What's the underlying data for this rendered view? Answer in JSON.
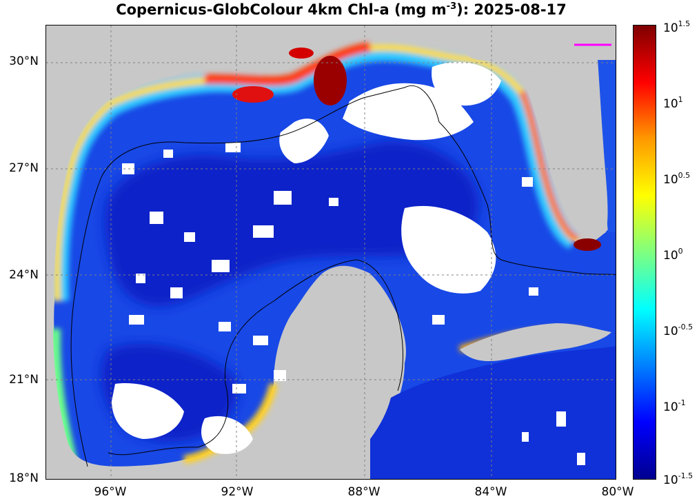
{
  "title": "Copernicus-GlobColour 4km Chl-a (mg m^-3): 2025-08-17",
  "title_parts": {
    "prefix": "Copernicus-GlobColour 4km Chl-a (mg m",
    "exponent": "-3",
    "suffix": "): 2025-08-17"
  },
  "lat_labels": [
    "30°N",
    "27°N",
    "24°N",
    "21°N",
    "18°N"
  ],
  "lon_labels": [
    "96°W",
    "92°W",
    "88°W",
    "84°W",
    "80°W"
  ],
  "colorbar": {
    "base": "10",
    "exponents": [
      "1.5",
      "1",
      "0.5",
      "0",
      "-0.5",
      "-1",
      "-1.5"
    ],
    "colors": [
      "#7f0000",
      "#ff0000",
      "#ff9900",
      "#ffff00",
      "#7fff7f",
      "#00ffff",
      "#0080ff",
      "#0000ff",
      "#00008f"
    ]
  },
  "colors": {
    "land": "#c8c8c8",
    "missing_data": "#ffffff",
    "bathymetry_contour": "#000000",
    "marker_line": "#ff00ff"
  }
}
